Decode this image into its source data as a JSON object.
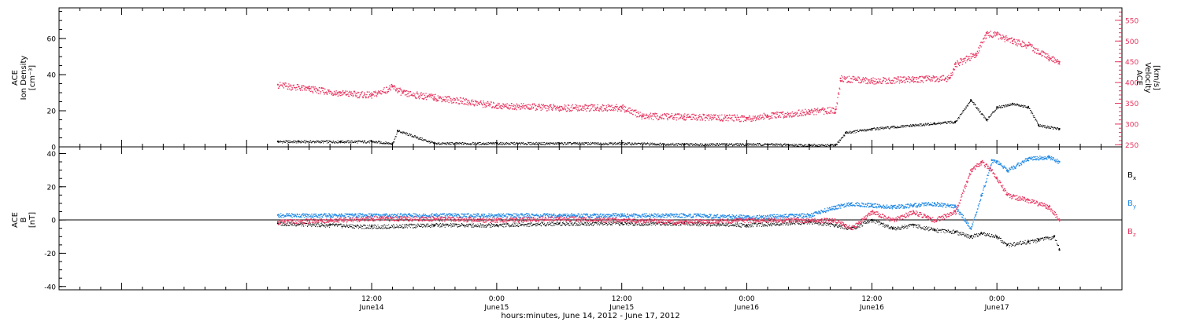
{
  "colors": {
    "density": "#000000",
    "velocity": "#e8335e",
    "bx": "#000000",
    "by": "#1e88e5",
    "bz": "#e8335e",
    "axis": "#000000"
  },
  "x_axis": {
    "label": "hours:minutes, June 14, 2012 - June 17, 2012",
    "range_hours": [
      -18,
      84
    ],
    "ticks": [
      {
        "hour": 12,
        "time": "12:00",
        "date": "June14"
      },
      {
        "hour": 24,
        "time": "0:00",
        "date": "June15"
      },
      {
        "hour": 36,
        "time": "12:00",
        "date": "June15"
      },
      {
        "hour": 48,
        "time": "0:00",
        "date": "June16"
      },
      {
        "hour": 60,
        "time": "12:00",
        "date": "June16"
      },
      {
        "hour": 72,
        "time": "0:00",
        "date": "June17"
      }
    ]
  },
  "top_panel": {
    "left_label": [
      "ACE",
      "Ion Density",
      "[cm⁻³]"
    ],
    "right_label": [
      "ACE",
      "Velocity",
      "[km/s]"
    ],
    "left_ticks": [
      "0",
      "20",
      "40",
      "60"
    ],
    "right_ticks": [
      "250",
      "300",
      "350",
      "400",
      "450",
      "500",
      "550"
    ]
  },
  "bottom_panel": {
    "left_label": [
      "ACE",
      "B",
      "[nT]"
    ],
    "left_ticks": [
      "-40",
      "-20",
      "0",
      "20",
      "40"
    ],
    "legend": [
      {
        "key": "bx",
        "base": "B",
        "sub": "x"
      },
      {
        "key": "by",
        "base": "B",
        "sub": "y"
      },
      {
        "key": "bz",
        "base": "B",
        "sub": "z"
      }
    ]
  },
  "chart_data": [
    {
      "type": "scatter",
      "title": "",
      "xlabel": "hours:minutes, June 14, 2012 - June 17, 2012",
      "xlim": [
        -18,
        84
      ],
      "ylabel_left": "ACE Ion Density [cm⁻³]",
      "ylim_left": [
        0,
        77
      ],
      "ylabel_right": "ACE Velocity [km/s]",
      "ylim_right": [
        245,
        580
      ],
      "series": [
        {
          "name": "Ion Density",
          "axis": "left",
          "x": [
            3,
            5,
            9,
            12,
            14,
            14.5,
            18,
            24,
            30,
            36,
            42,
            48,
            50,
            54,
            56.5,
            57.5,
            60,
            64,
            66,
            68,
            69.5,
            71,
            72,
            73.5,
            75,
            76,
            78
          ],
          "y": [
            3,
            3,
            3,
            3,
            2,
            9,
            2,
            2,
            2,
            2,
            1.5,
            1.5,
            1.5,
            1,
            1,
            8,
            10,
            12,
            13,
            14,
            26,
            15,
            22,
            24,
            22,
            12,
            10
          ]
        },
        {
          "name": "Velocity",
          "axis": "right",
          "x": [
            3,
            6,
            9,
            12,
            14,
            15,
            18,
            24,
            30,
            36,
            38,
            42,
            48,
            50,
            54,
            56.5,
            57,
            60,
            64,
            67.5,
            68,
            70,
            71,
            72,
            73.5,
            75,
            77,
            78
          ],
          "y": [
            395,
            385,
            375,
            370,
            390,
            375,
            365,
            345,
            340,
            340,
            320,
            318,
            315,
            320,
            330,
            335,
            410,
            405,
            408,
            412,
            445,
            470,
            520,
            515,
            500,
            490,
            460,
            450
          ]
        }
      ]
    },
    {
      "type": "scatter",
      "title": "",
      "xlabel": "hours:minutes, June 14, 2012 - June 17, 2012",
      "xlim": [
        -18,
        84
      ],
      "ylabel": "ACE B [nT]",
      "ylim": [
        -42,
        44
      ],
      "series": [
        {
          "name": "Bx",
          "x": [
            3,
            8,
            12,
            18,
            24,
            30,
            36,
            42,
            48,
            54,
            56.5,
            58,
            60,
            62,
            64,
            66,
            68,
            69.5,
            70.5,
            72,
            73,
            75,
            76,
            77.5,
            78
          ],
          "y": [
            -2,
            -3,
            -4,
            -3,
            -3,
            -2,
            -2,
            -2,
            -3,
            -1,
            -3,
            -5,
            0,
            -5,
            -3,
            -6,
            -7,
            -10,
            -8,
            -10,
            -15,
            -13,
            -12,
            -10,
            -18
          ]
        },
        {
          "name": "By",
          "x": [
            3,
            8,
            12,
            18,
            24,
            30,
            36,
            42,
            48,
            54,
            56.5,
            58,
            60,
            62,
            64,
            66,
            68,
            69.5,
            70.5,
            71.5,
            72,
            73,
            75,
            77,
            78
          ],
          "y": [
            3,
            3,
            3,
            3,
            3,
            3,
            3,
            3,
            2,
            3,
            8,
            10,
            9,
            8,
            9,
            10,
            8,
            -5,
            15,
            36,
            35,
            30,
            37,
            38,
            35
          ]
        },
        {
          "name": "Bz",
          "x": [
            3,
            8,
            12,
            18,
            24,
            30,
            36,
            42,
            48,
            54,
            56.5,
            58,
            60,
            62,
            64,
            66,
            68,
            69.5,
            70.5,
            71.5,
            72,
            73,
            75,
            77,
            78
          ],
          "y": [
            -1,
            0,
            1,
            1,
            0,
            1,
            0,
            -1,
            0,
            0,
            0,
            -5,
            5,
            0,
            5,
            0,
            5,
            30,
            35,
            30,
            25,
            15,
            12,
            8,
            0
          ]
        }
      ]
    }
  ]
}
